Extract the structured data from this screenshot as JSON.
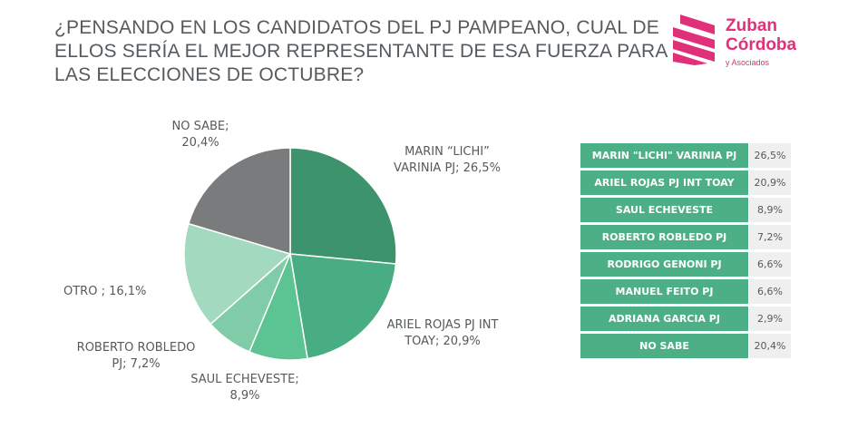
{
  "title": "¿PENSANDO EN LOS CANDIDATOS DEL PJ PAMPEANO, CUAL DE ELLOS SERÍA EL MEJOR REPRESENTANTE DE ESA FUERZA PARA LAS ELECCIONES DE OCTUBRE?",
  "logo": {
    "brand_line1": "Zuban",
    "brand_line2": "Córdoba",
    "tagline": "y Asociados",
    "color": "#e0307a"
  },
  "chart_data": [
    {
      "type": "pie",
      "slices": [
        {
          "label": "MARIN “LICHI” VARINIA PJ; 26,5%",
          "value": 26.5,
          "color": "#3c936c"
        },
        {
          "label": "ARIEL ROJAS PJ INT TOAY; 20,9%",
          "value": 20.9,
          "color": "#49ad83"
        },
        {
          "label": "SAUL ECHEVESTE; 8,9%",
          "value": 8.9,
          "color": "#5cc393"
        },
        {
          "label": "ROBERTO ROBLEDO PJ; 7,2%",
          "value": 7.2,
          "color": "#80cca8"
        },
        {
          "label": "OTRO ; 16,1%",
          "value": 16.1,
          "color": "#a3d9bf"
        },
        {
          "label": "NO SABE; 20,4%",
          "value": 20.4,
          "color": "#7a7b7d"
        }
      ]
    },
    {
      "type": "table",
      "rows": [
        {
          "name": "MARIN \"LICHI\" VARINIA PJ",
          "value": "26,5%"
        },
        {
          "name": "ARIEL ROJAS PJ INT TOAY",
          "value": "20,9%"
        },
        {
          "name": "SAUL ECHEVESTE",
          "value": "8,9%"
        },
        {
          "name": "ROBERTO ROBLEDO PJ",
          "value": "7,2%"
        },
        {
          "name": "RODRIGO GENONI PJ",
          "value": "6,6%"
        },
        {
          "name": "MANUEL FEITO PJ",
          "value": "6,6%"
        },
        {
          "name": "ADRIANA GARCIA PJ",
          "value": "2,9%"
        },
        {
          "name": "NO SABE",
          "value": "20,4%"
        }
      ]
    }
  ]
}
